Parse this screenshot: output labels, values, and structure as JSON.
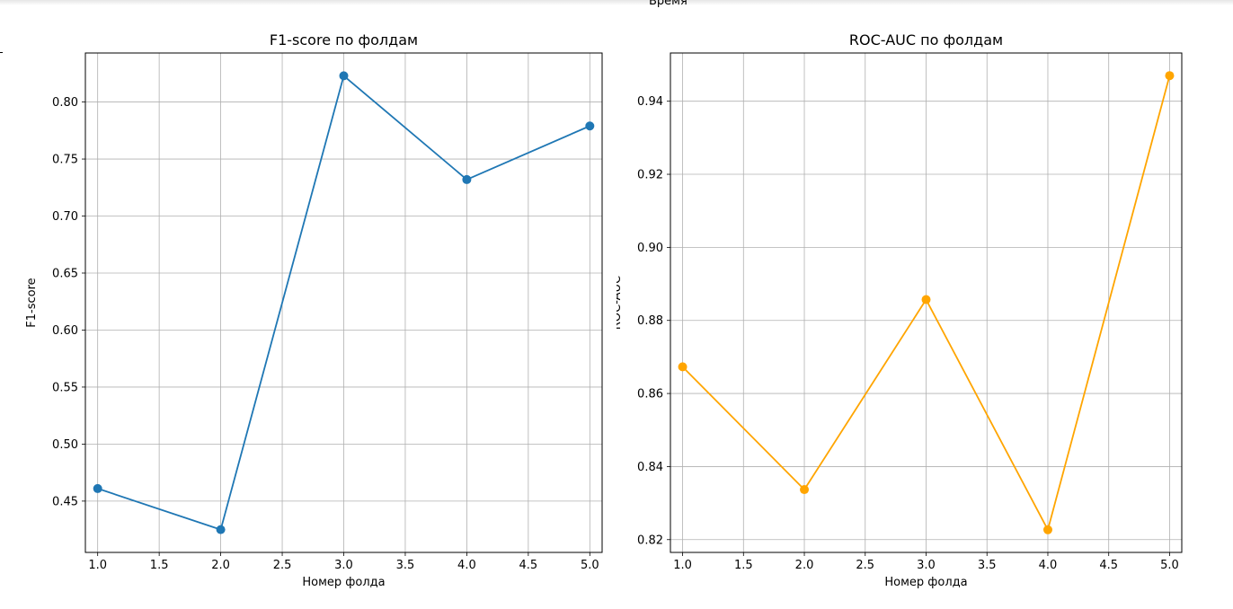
{
  "header": {
    "cut_label": "Время"
  },
  "chart_data": [
    {
      "type": "line",
      "title": "F1-score по фолдам",
      "xlabel": "Номер фолда",
      "ylabel": "F1-score",
      "x": [
        1,
        2,
        3,
        4,
        5
      ],
      "series": [
        {
          "values": [
            0.461,
            0.425,
            0.823,
            0.732,
            0.779
          ],
          "color": "#1f77b4"
        }
      ],
      "xlim": [
        0.9,
        5.1
      ],
      "ylim": [
        0.405,
        0.843
      ],
      "xticks": [
        1.0,
        1.5,
        2.0,
        2.5,
        3.0,
        3.5,
        4.0,
        4.5,
        5.0
      ],
      "xtick_labels": [
        "1.0",
        "1.5",
        "2.0",
        "2.5",
        "3.0",
        "3.5",
        "4.0",
        "4.5",
        "5.0"
      ],
      "yticks": [
        0.45,
        0.5,
        0.55,
        0.6,
        0.65,
        0.7,
        0.75,
        0.8
      ],
      "ytick_labels": [
        "0.45",
        "0.50",
        "0.55",
        "0.60",
        "0.65",
        "0.70",
        "0.75",
        "0.80"
      ],
      "grid": true,
      "marker": "circle"
    },
    {
      "type": "line",
      "title": "ROC-AUC по фолдам",
      "xlabel": "Номер фолда",
      "ylabel": "ROC-AUC",
      "x": [
        1,
        2,
        3,
        4,
        5
      ],
      "series": [
        {
          "values": [
            0.8673,
            0.8337,
            0.8857,
            0.8227,
            0.947
          ],
          "color": "#ffa500"
        }
      ],
      "xlim": [
        0.9,
        5.1
      ],
      "ylim": [
        0.8165,
        0.9532
      ],
      "xticks": [
        1.0,
        1.5,
        2.0,
        2.5,
        3.0,
        3.5,
        4.0,
        4.5,
        5.0
      ],
      "xtick_labels": [
        "1.0",
        "1.5",
        "2.0",
        "2.5",
        "3.0",
        "3.5",
        "4.0",
        "4.5",
        "5.0"
      ],
      "yticks": [
        0.82,
        0.84,
        0.86,
        0.88,
        0.9,
        0.92,
        0.94
      ],
      "ytick_labels": [
        "0.82",
        "0.84",
        "0.86",
        "0.88",
        "0.90",
        "0.92",
        "0.94"
      ],
      "grid": true,
      "marker": "circle"
    }
  ]
}
